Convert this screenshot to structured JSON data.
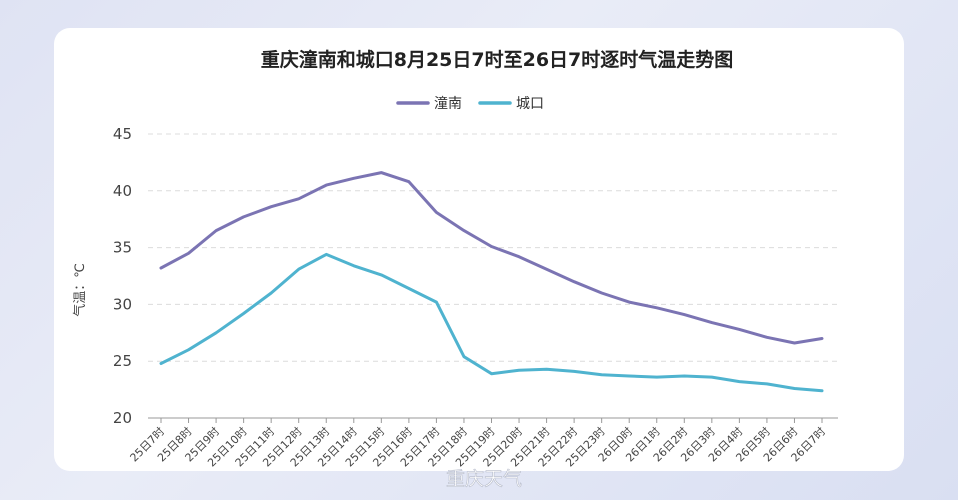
{
  "chart_data": {
    "type": "line",
    "title": "重庆潼南和城口8月25日7时至26日7时逐时气温走势图",
    "ylabel": "气温：℃",
    "xlabel": "",
    "ylim": [
      20,
      45
    ],
    "yticks": [
      20,
      25,
      30,
      35,
      40,
      45
    ],
    "grid": true,
    "legend_position": "top-center",
    "categories": [
      "25日7时",
      "25日8时",
      "25日9时",
      "25日10时",
      "25日11时",
      "25日12时",
      "25日13时",
      "25日14时",
      "25日15时",
      "25日16时",
      "25日17时",
      "25日18时",
      "25日19时",
      "25日20时",
      "25日21时",
      "25日22时",
      "25日23时",
      "26日0时",
      "26日1时",
      "26日2时",
      "26日3时",
      "26日4时",
      "26日5时",
      "26日6时",
      "26日7时"
    ],
    "series": [
      {
        "name": "潼南",
        "color": "#7b74b3",
        "values": [
          33.2,
          34.5,
          36.5,
          37.7,
          38.6,
          39.3,
          40.5,
          41.1,
          41.6,
          40.8,
          38.1,
          36.5,
          35.1,
          34.2,
          33.1,
          32.0,
          31.0,
          30.2,
          29.7,
          29.1,
          28.4,
          27.8,
          27.1,
          26.6,
          27.0
        ]
      },
      {
        "name": "城口",
        "color": "#4fb3cf",
        "values": [
          24.8,
          26.0,
          27.5,
          29.2,
          31.0,
          33.1,
          34.4,
          33.4,
          32.6,
          31.4,
          30.2,
          25.4,
          23.9,
          24.2,
          24.3,
          24.1,
          23.8,
          23.7,
          23.6,
          23.7,
          23.6,
          23.2,
          23.0,
          22.6,
          22.4
        ]
      }
    ]
  },
  "watermark": {
    "text": "重庆天气"
  }
}
